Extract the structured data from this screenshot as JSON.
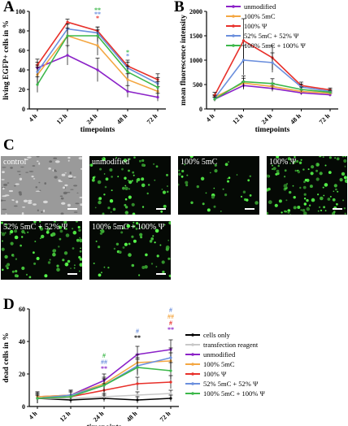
{
  "panels": {
    "A": {
      "label": "A"
    },
    "B": {
      "label": "B"
    },
    "C": {
      "label": "C"
    },
    "D": {
      "label": "D"
    }
  },
  "colors": {
    "unmodified": "#8b22c8",
    "m5C": "#f4a742",
    "psi": "#e8302a",
    "mix52": "#6b8fdd",
    "mix100": "#3cb84a",
    "cellsOnly": "#000000",
    "reagent": "#c8c8c8"
  },
  "legendB": [
    "unmodified",
    "100% 5mC",
    "100% Ψ",
    "52% 5mC + 52% Ψ",
    "100% 5mC + 100% Ψ"
  ],
  "legendD": [
    "cells only",
    "transfection reagent",
    "unmodified",
    "100% 5mC",
    "100% Ψ",
    "52% 5mC + 52% Ψ",
    "100% 5mC + 100% Ψ"
  ],
  "micrographs": {
    "control": "control",
    "unmodified": "unmodified",
    "m5C": "100% 5mC",
    "psi": "100% Ψ",
    "mix52": "52% 5mC + 52% Ψ",
    "mix100": "100% 5mC + 100% Ψ"
  },
  "chart_data": [
    {
      "panel": "A",
      "type": "line",
      "categories": [
        "4 h",
        "12 h",
        "24 h",
        "48 h",
        "72 h"
      ],
      "xlabel": "timepoints",
      "ylabel": "living EGFP+ cells in %",
      "ylim": [
        0,
        100
      ],
      "yticks": [
        0,
        20,
        40,
        60,
        80,
        100
      ],
      "series": [
        {
          "name": "unmodified",
          "color": "#8b22c8",
          "values": [
            42,
            55,
            40,
            18,
            12
          ],
          "err": [
            6,
            10,
            12,
            6,
            4
          ]
        },
        {
          "name": "100% 5mC",
          "color": "#f4a742",
          "values": [
            35,
            75,
            65,
            30,
            18
          ],
          "err": [
            8,
            12,
            10,
            6,
            5
          ]
        },
        {
          "name": "100% Ψ",
          "color": "#e8302a",
          "values": [
            45,
            89,
            80,
            44,
            30
          ],
          "err": [
            6,
            3,
            4,
            6,
            6
          ]
        },
        {
          "name": "52% 5mC + 52% Ψ",
          "color": "#6b8fdd",
          "values": [
            38,
            82,
            78,
            42,
            26
          ],
          "err": [
            7,
            5,
            6,
            6,
            6
          ]
        },
        {
          "name": "100% 5mC + 100% Ψ",
          "color": "#3cb84a",
          "values": [
            25,
            75,
            75,
            38,
            22
          ],
          "err": [
            8,
            8,
            6,
            6,
            6
          ]
        }
      ],
      "annotations": [
        {
          "x": "24 h",
          "text": "**",
          "color": "#3cb84a",
          "y": 99
        },
        {
          "x": "24 h",
          "text": "**",
          "color": "#6b8fdd",
          "y": 95
        },
        {
          "x": "24 h",
          "text": "*",
          "color": "#e8302a",
          "y": 91
        },
        {
          "x": "48 h",
          "text": "*",
          "color": "#3cb84a",
          "y": 56
        },
        {
          "x": "48 h",
          "text": "*",
          "color": "#6b8fdd",
          "y": 52
        }
      ]
    },
    {
      "panel": "B",
      "type": "line",
      "categories": [
        "4 h",
        "12 h",
        "24 h",
        "48 h",
        "72 h"
      ],
      "xlabel": "timepoints",
      "ylabel": "mean fluorescence intensity",
      "ylim": [
        0,
        2000
      ],
      "yticks": [
        0,
        500,
        1000,
        1500,
        2000
      ],
      "series": [
        {
          "name": "unmodified",
          "color": "#8b22c8",
          "values": [
            200,
            480,
            420,
            330,
            290
          ],
          "err": [
            40,
            80,
            60,
            40,
            30
          ]
        },
        {
          "name": "100% 5mC",
          "color": "#f4a742",
          "values": [
            240,
            530,
            460,
            360,
            320
          ],
          "err": [
            50,
            100,
            70,
            40,
            30
          ]
        },
        {
          "name": "100% Ψ",
          "color": "#e8302a",
          "values": [
            280,
            1400,
            1050,
            480,
            390
          ],
          "err": [
            60,
            450,
            250,
            70,
            40
          ]
        },
        {
          "name": "52% 5mC + 52% Ψ",
          "color": "#6b8fdd",
          "values": [
            220,
            1000,
            950,
            450,
            360
          ],
          "err": [
            50,
            300,
            200,
            60,
            40
          ]
        },
        {
          "name": "100% 5mC + 100% Ψ",
          "color": "#3cb84a",
          "values": [
            200,
            560,
            520,
            400,
            340
          ],
          "err": [
            40,
            120,
            100,
            50,
            30
          ]
        }
      ]
    },
    {
      "panel": "D",
      "type": "line",
      "categories": [
        "4 h",
        "12 h",
        "24 h",
        "48 h",
        "72 h"
      ],
      "xlabel": "timepoints",
      "ylabel": "dead cells in %",
      "ylim": [
        0,
        60
      ],
      "yticks": [
        0,
        20,
        40,
        60
      ],
      "series": [
        {
          "name": "cells only",
          "color": "#000000",
          "values": [
            5,
            4,
            5,
            4,
            5
          ],
          "err": [
            2,
            2,
            2,
            2,
            2
          ]
        },
        {
          "name": "transfection reagent",
          "color": "#c8c8c8",
          "values": [
            5,
            5,
            6,
            7,
            8
          ],
          "err": [
            2,
            2,
            2,
            2,
            2
          ]
        },
        {
          "name": "unmodified",
          "color": "#8b22c8",
          "values": [
            6,
            7,
            16,
            32,
            35
          ],
          "err": [
            3,
            3,
            4,
            5,
            6
          ]
        },
        {
          "name": "100% 5mC",
          "color": "#f4a742",
          "values": [
            6,
            7,
            14,
            27,
            28
          ],
          "err": [
            3,
            3,
            4,
            5,
            5
          ]
        },
        {
          "name": "100% Ψ",
          "color": "#e8302a",
          "values": [
            5,
            6,
            10,
            14,
            15
          ],
          "err": [
            3,
            3,
            4,
            4,
            4
          ]
        },
        {
          "name": "52% 5mC + 52% Ψ",
          "color": "#6b8fdd",
          "values": [
            5,
            7,
            13,
            25,
            30
          ],
          "err": [
            3,
            3,
            4,
            5,
            6
          ]
        },
        {
          "name": "100% 5mC + 100% Ψ",
          "color": "#3cb84a",
          "values": [
            5,
            6,
            13,
            24,
            22
          ],
          "err": [
            3,
            3,
            4,
            5,
            5
          ]
        }
      ],
      "annotations": [
        {
          "x": "24 h",
          "text": "#",
          "color": "#3cb84a",
          "y": 30
        },
        {
          "x": "24 h",
          "text": "##",
          "color": "#6b8fdd",
          "y": 26
        },
        {
          "x": "24 h",
          "text": "**",
          "color": "#8b22c8",
          "y": 22
        },
        {
          "x": "48 h",
          "text": "#",
          "color": "#6b8fdd",
          "y": 45
        },
        {
          "x": "48 h",
          "text": "**",
          "color": "#000000",
          "y": 41
        },
        {
          "x": "72 h",
          "text": "#",
          "color": "#6b8fdd",
          "y": 58
        },
        {
          "x": "72 h",
          "text": "##",
          "color": "#f4a742",
          "y": 54
        },
        {
          "x": "72 h",
          "text": "#",
          "color": "#e8302a",
          "y": 50
        },
        {
          "x": "72 h",
          "text": "**",
          "color": "#8b22c8",
          "y": 46
        }
      ]
    }
  ]
}
